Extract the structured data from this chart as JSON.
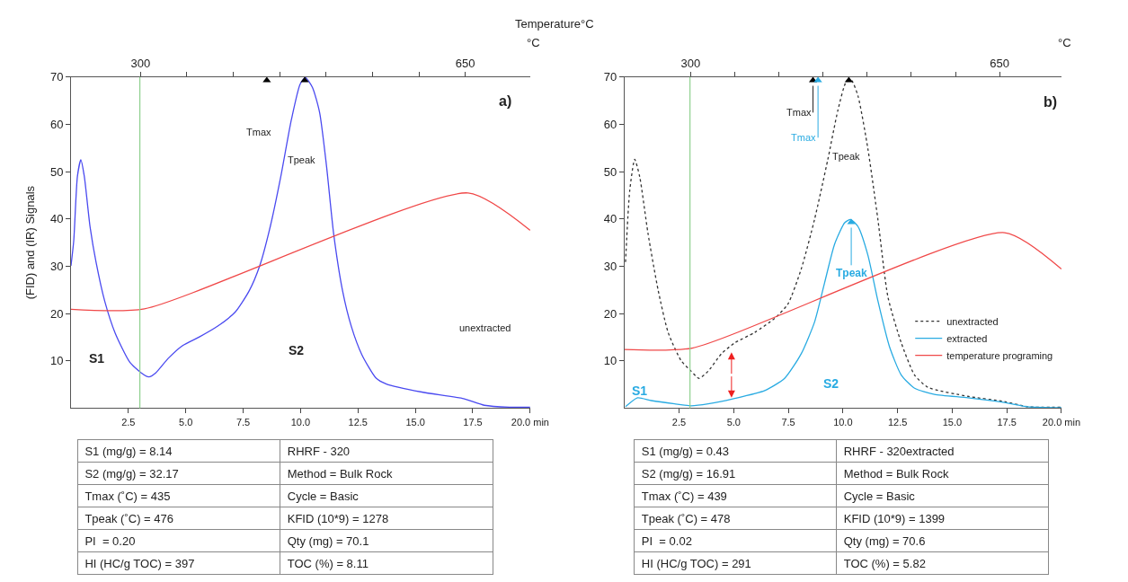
{
  "chart_data": [
    {
      "type": "line",
      "title": "Temperature°C",
      "ylabel": "(FID) and (IR) Signals",
      "x2label": "°C",
      "xlim": [
        0,
        20
      ],
      "xticks": [
        2.5,
        {
          "value": 5,
          "label": "5.0"
        },
        7.5,
        {
          "value": 10,
          "label": "10.0"
        },
        12.5,
        {
          "value": 15,
          "label": "15.0"
        },
        17.5,
        {
          "value": 20,
          "label": "20.0 min"
        }
      ],
      "x2lim": [
        225,
        720
      ],
      "x2ticks": [
        300,
        {
          "value": 350,
          "label": null
        },
        {
          "value": 400,
          "label": null
        },
        {
          "value": 450,
          "label": null
        },
        {
          "value": 500,
          "label": null
        },
        {
          "value": 550,
          "label": null
        },
        {
          "value": 600,
          "label": null
        },
        650
      ],
      "ylim": [
        0,
        70
      ],
      "yticks": [
        10,
        20,
        30,
        40,
        50,
        60,
        70
      ],
      "legend": false,
      "ref_lines": [
        {
          "axis": "x",
          "value": 3.0,
          "color": "#8fd08f"
        }
      ],
      "series": [
        {
          "color": "#4a4af0",
          "x": [
            0,
            0.12,
            0.28,
            0.43,
            0.58,
            0.83,
            1.09,
            1.47,
            1.93,
            2.55,
            3.05,
            3.39,
            3.7,
            4.23,
            4.85,
            5.61,
            6.38,
            7.15,
            7.76,
            8.22,
            8.68,
            9.14,
            9.6,
            9.98,
            10.21,
            10.52,
            10.83,
            11.13,
            11.44,
            11.83,
            12.21,
            12.67,
            13.28,
            13.74,
            15.28,
            17.1,
            18.0,
            19.1,
            20
          ],
          "values": [
            30.1,
            35.4,
            49,
            52.5,
            49,
            38.4,
            30.9,
            22.6,
            15.8,
            9.8,
            7.5,
            6.6,
            7.5,
            10.5,
            13.2,
            15.1,
            17.3,
            20.3,
            24.8,
            30.1,
            38.4,
            49,
            61,
            68.5,
            69.9,
            67.8,
            62.5,
            51.2,
            36.9,
            24.8,
            17.3,
            11.3,
            6.4,
            5.1,
            3.4,
            2.0,
            0.6,
            0.2,
            0.2
          ]
        },
        {
          "color": "#f04848",
          "x": [
            0,
            3.2,
            17.3,
            20
          ],
          "values": [
            20.9,
            21.0,
            45.5,
            37.6
          ]
        },
        {
          "type": "scatter",
          "marker": "triangle",
          "color": "#000000",
          "x": [
            8.53,
            10.18
          ],
          "values": [
            69.3,
            69.3
          ]
        }
      ],
      "annotations": [
        "a)",
        "Tmax",
        "Tpeak",
        "S1",
        "S2",
        "unextracted",
        "S1 (mg/g) = 8.14",
        "RHRF - 320",
        "S2 (mg/g) = 32.17",
        "Method = Bulk Rock",
        "Tmax (˚C) = 435",
        "Cycle = Basic",
        "Tpeak (˚C) = 476",
        "KFID (10*9) = 1278",
        "PI  = 0.20",
        "Qty (mg) = 70.1",
        "HI (HC/g TOC) = 397",
        "TOC (%) = 8.11"
      ]
    },
    {
      "type": "line",
      "x2label": "°C",
      "xlim": [
        0,
        20
      ],
      "xticks": [
        2.5,
        {
          "value": 5,
          "label": "5.0"
        },
        7.5,
        {
          "value": 10,
          "label": "10.0"
        },
        12.5,
        {
          "value": 15,
          "label": "15.0"
        },
        17.5,
        {
          "value": 20,
          "label": "20.0 min"
        }
      ],
      "x2lim": [
        225,
        720
      ],
      "x2ticks": [
        300,
        {
          "value": 350,
          "label": null
        },
        {
          "value": 400,
          "label": null
        },
        {
          "value": 450,
          "label": null
        },
        {
          "value": 500,
          "label": null
        },
        {
          "value": 550,
          "label": null
        },
        {
          "value": 600,
          "label": null
        },
        650
      ],
      "ylim": [
        0,
        70
      ],
      "yticks": [
        10,
        20,
        30,
        40,
        50,
        60,
        70
      ],
      "legend": "bottom right",
      "ref_lines": [
        {
          "axis": "x",
          "value": 3.0,
          "color": "#8fd08f"
        }
      ],
      "series": [
        {
          "name": "unextracted",
          "color": "#333333",
          "line_style": "dotted",
          "x": [
            0.05,
            0.24,
            0.47,
            0.7,
            1.08,
            1.54,
            2.0,
            2.6,
            3.06,
            3.41,
            3.83,
            4.44,
            5.05,
            5.96,
            6.88,
            7.48,
            8.09,
            8.7,
            9.31,
            9.77,
            10.15,
            10.38,
            10.69,
            11.14,
            11.6,
            12.06,
            12.67,
            13.28,
            13.89,
            15.72,
            17.39,
            18.46,
            20
          ],
          "values": [
            30.9,
            45.9,
            52.6,
            48.9,
            36.9,
            25,
            16,
            10,
            7.8,
            6.3,
            7.8,
            11.5,
            13.8,
            16,
            19,
            22,
            29.4,
            39.9,
            52.6,
            63,
            69,
            69.4,
            66,
            54.9,
            39.9,
            23.5,
            13.8,
            7,
            4.4,
            2.5,
            1.4,
            0.3,
            0.2
          ]
        },
        {
          "name": "extracted",
          "color": "#29abe2",
          "x": [
            0.05,
            0.6,
            1.23,
            2.3,
            3.06,
            3.83,
            5.0,
            6.42,
            7.33,
            8.09,
            8.7,
            9.16,
            9.62,
            10.08,
            10.35,
            10.69,
            11.14,
            11.6,
            12.13,
            12.67,
            13.28,
            14.19,
            15.72,
            17.39,
            18.46,
            20
          ],
          "values": [
            0.3,
            2.2,
            1.6,
            0.9,
            0.5,
            0.9,
            2.0,
            3.7,
            6.3,
            11.5,
            18.2,
            26.5,
            34.7,
            39.2,
            39.9,
            38.4,
            32.4,
            22.7,
            13,
            7,
            4.2,
            2.9,
            2.2,
            1.2,
            0.3,
            0.1
          ]
        },
        {
          "name": "temperature programing",
          "color": "#f04848",
          "x": [
            0,
            3.1,
            17.4,
            20
          ],
          "values": [
            12.4,
            12.7,
            37.1,
            29.4
          ]
        },
        {
          "type": "scatter",
          "marker": "triangle",
          "color": "#000000",
          "x": [
            8.63,
            10.27
          ],
          "values": [
            69.3,
            69.3
          ]
        },
        {
          "type": "scatter",
          "marker": "triangle",
          "color": "#29abe2",
          "x": [
            8.86,
            10.38
          ],
          "values": [
            69.3,
            39.3
          ]
        }
      ],
      "annotations": [
        "b)",
        {
          "text": "Tmax",
          "x": 8.63,
          "y": 69.3
        },
        {
          "text": "Tmax",
          "x": 8.86,
          "y": 69.3
        },
        "Tpeak",
        {
          "text": "Tpeak",
          "x": 10.38,
          "y": 39.3
        },
        "S1",
        "S2",
        "S1 (mg/g) = 0.43",
        "RHRF - 320extracted",
        "S2 (mg/g) = 16.91",
        "Method = Bulk Rock",
        "Tmax (˚C) = 439",
        "Cycle = Basic",
        "Tpeak (˚C) = 478",
        "KFID (10*9) = 1399",
        "PI  = 0.02",
        "Qty (mg) = 70.6",
        "HI (HC/g TOC) = 291",
        "TOC (%) = 5.82"
      ]
    }
  ]
}
